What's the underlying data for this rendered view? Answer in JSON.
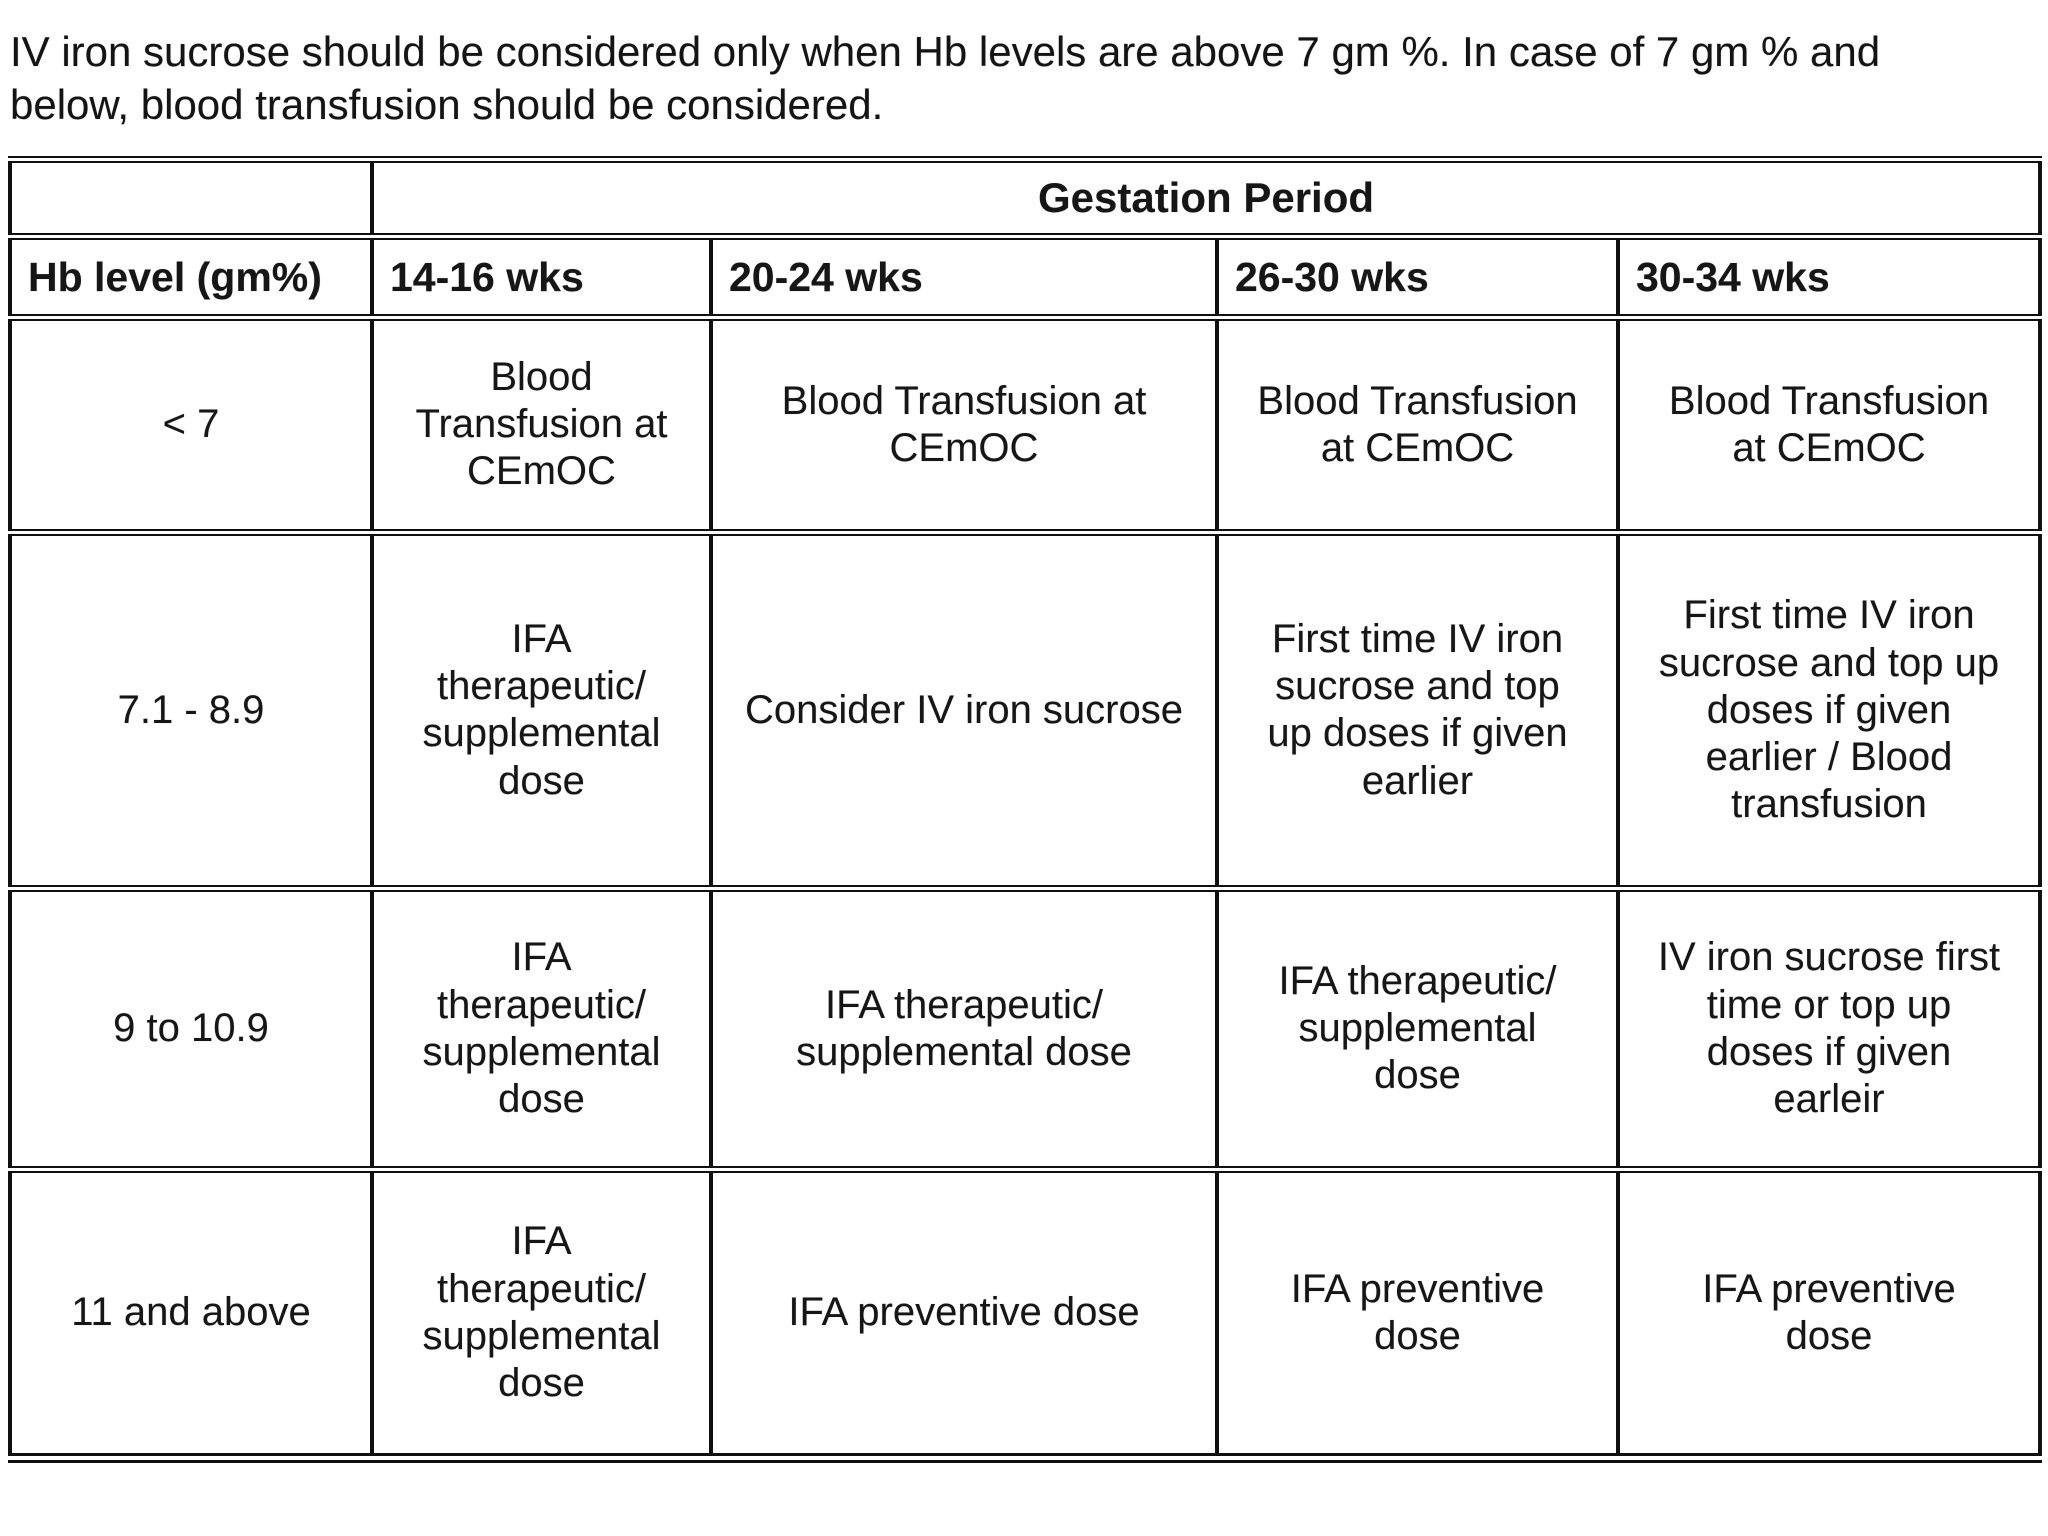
{
  "intro": {
    "text": "IV iron sucrose should be considered only when Hb levels are above 7 gm %. In case of 7 gm % and\nbelow, blood transfusion should be considered."
  },
  "table": {
    "gestation_header": "Gestation Period",
    "columns": [
      "Hb level (gm%)",
      "14-16 wks",
      "20-24 wks",
      "26-30 wks",
      "30-34 wks"
    ],
    "rows": [
      {
        "hb": "< 7",
        "cells": [
          "Blood\nTransfusion at\nCEmOC",
          "Blood Transfusion at\nCEmOC",
          "Blood Transfusion\nat CEmOC",
          "Blood Transfusion\nat CEmOC"
        ]
      },
      {
        "hb": "7.1 - 8.9",
        "cells": [
          "IFA\ntherapeutic/\nsupplemental\ndose",
          "Consider IV iron sucrose",
          "First time IV iron\nsucrose and top\nup doses if given\nearlier",
          "First time IV iron\nsucrose and top up\ndoses if given\nearlier / Blood\ntransfusion"
        ]
      },
      {
        "hb": "9 to 10.9",
        "cells": [
          "IFA\ntherapeutic/\nsupplemental\ndose",
          "IFA therapeutic/\nsupplemental dose",
          "IFA therapeutic/\nsupplemental\ndose",
          "IV iron sucrose first\ntime or top up\ndoses if given\nearleir"
        ]
      },
      {
        "hb": "11 and above",
        "cells": [
          "IFA\ntherapeutic/\nsupplemental\ndose",
          "IFA preventive dose",
          "IFA preventive\ndose",
          "IFA preventive\ndose"
        ]
      }
    ]
  }
}
